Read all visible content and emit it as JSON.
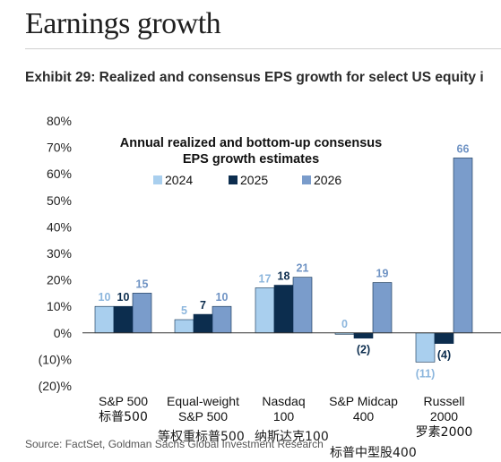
{
  "header": {
    "page_title": "Earnings growth",
    "exhibit_title": "Exhibit 29: Realized and consensus EPS growth for select US equity i"
  },
  "footer": {
    "source": "Source: FactSet, Goldman Sachs Global Investment Research"
  },
  "overlay_labels": [
    "等权重标普500",
    "纳斯达克100",
    "标普中型股400"
  ],
  "chart_data": {
    "type": "bar",
    "title_line1": "Annual realized and bottom-up consensus",
    "title_line2": "EPS growth estimates",
    "categories": [
      [
        "S&P 500",
        "标普500"
      ],
      [
        "Equal-weight",
        "S&P 500"
      ],
      [
        "Nasdaq",
        "100"
      ],
      [
        "S&P Midcap",
        "400"
      ],
      [
        "Russell",
        "2000",
        "罗素2000"
      ]
    ],
    "series": [
      {
        "name": "2024",
        "color": "#a9cfee",
        "label_color": "#8cb6dd",
        "values": [
          10,
          5,
          17,
          0,
          -11
        ],
        "labels": [
          "10",
          "5",
          "17",
          "0",
          "(11)"
        ]
      },
      {
        "name": "2025",
        "color": "#0c2d4e",
        "label_color": "#0c2d4e",
        "values": [
          10,
          7,
          18,
          -2,
          -4
        ],
        "labels": [
          "10",
          "7",
          "18",
          "(2)",
          "(4)"
        ]
      },
      {
        "name": "2026",
        "color": "#7a9ccb",
        "label_color": "#6f93c4",
        "values": [
          15,
          10,
          21,
          19,
          66
        ],
        "labels": [
          "15",
          "10",
          "21",
          "19",
          "66"
        ]
      }
    ],
    "ylim": [
      -20,
      80
    ],
    "yticks": [
      -20,
      -10,
      0,
      10,
      20,
      30,
      40,
      50,
      60,
      70,
      80
    ],
    "ytick_labels": [
      "(20)%",
      "(10)%",
      "0%",
      "10%",
      "20%",
      "30%",
      "40%",
      "50%",
      "60%",
      "70%",
      "80%"
    ],
    "legend_position": "top-center",
    "grid": false
  }
}
